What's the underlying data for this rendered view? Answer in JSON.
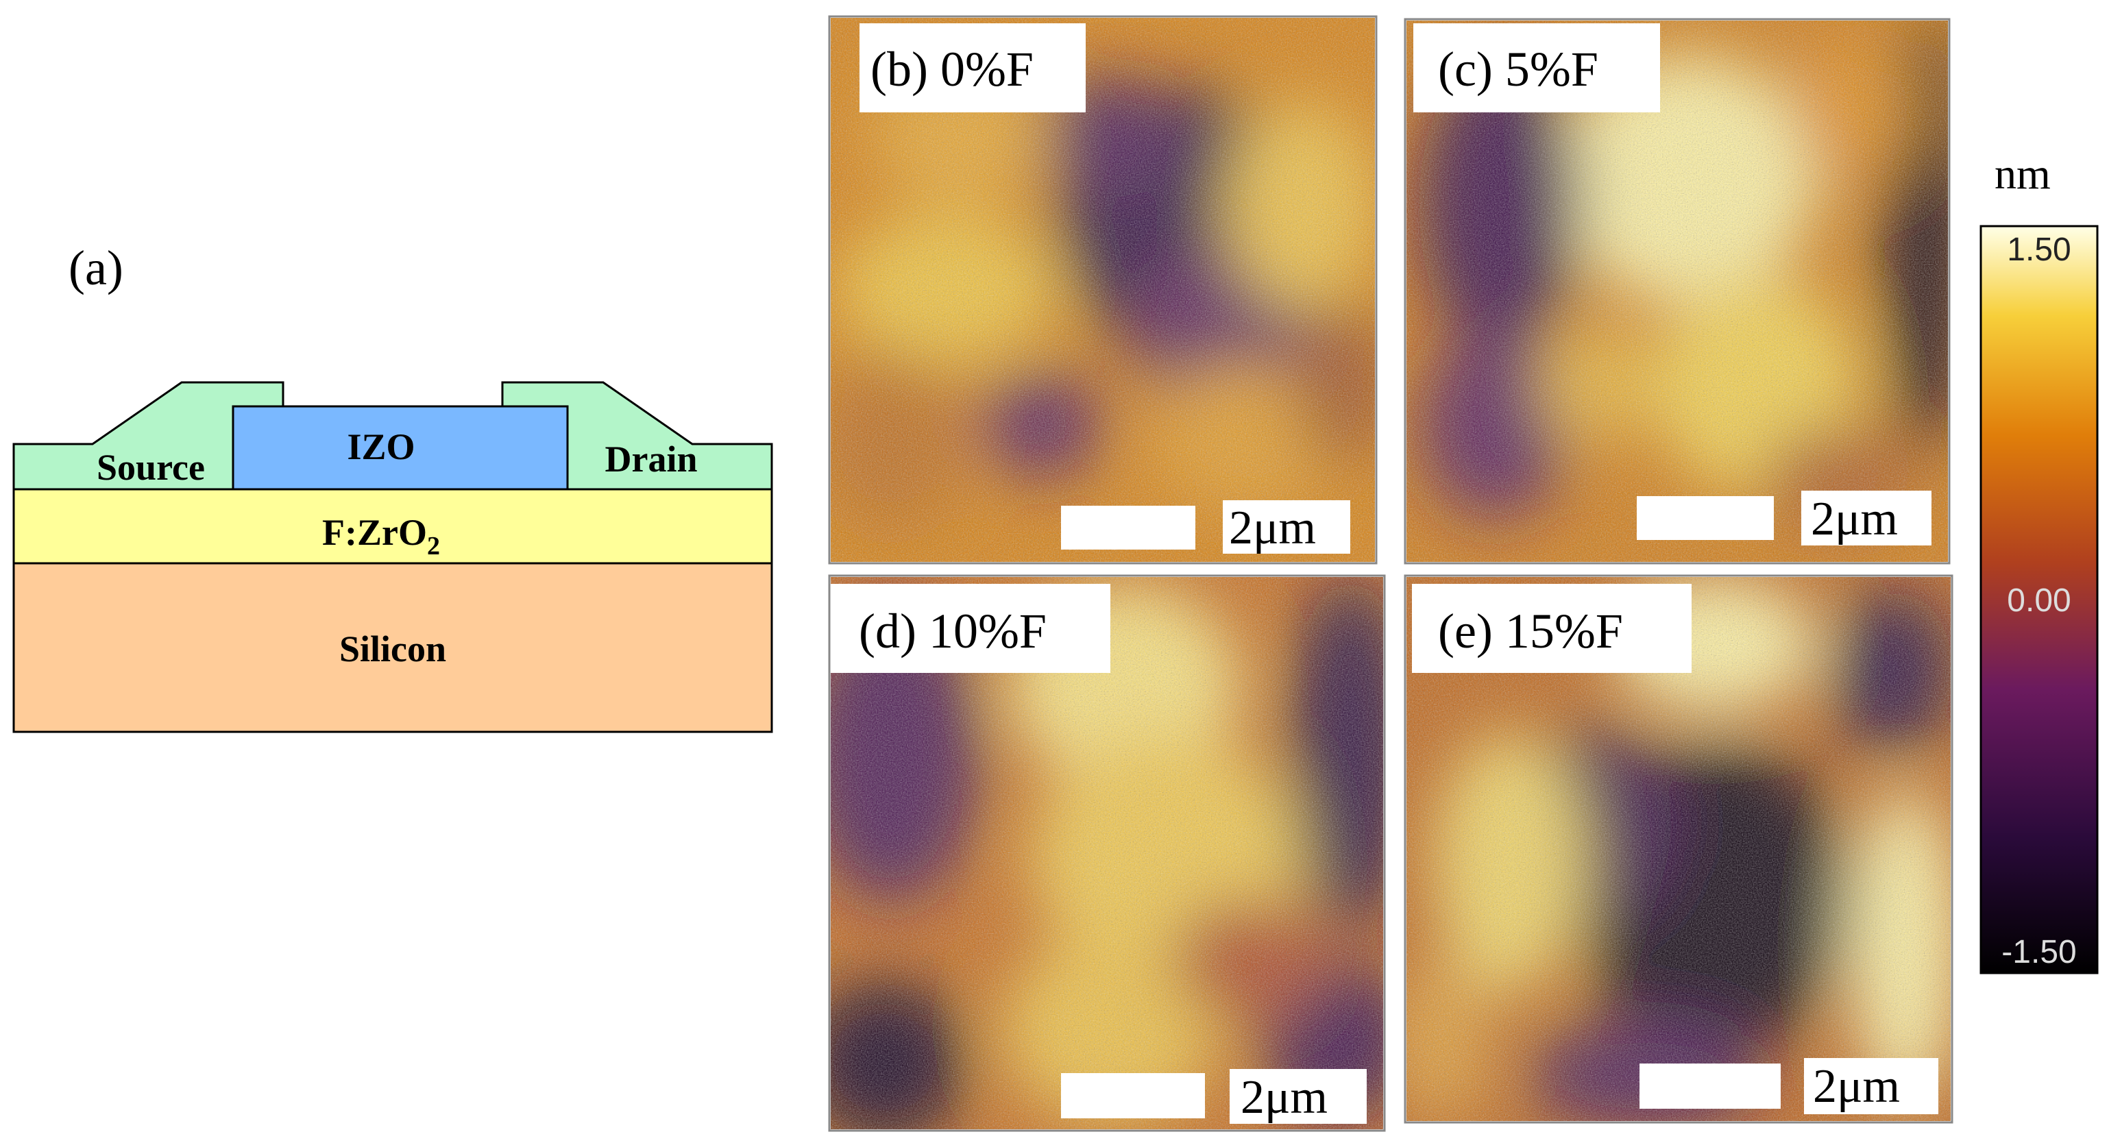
{
  "panel_a": {
    "label": "(a)",
    "layers": {
      "source": "Source",
      "drain": "Drain",
      "channel": "IZO",
      "dielectric_main": "F:ZrO",
      "dielectric_subscript": "2",
      "substrate": "Silicon"
    },
    "colors": {
      "electrode": "#b3f5c9",
      "channel": "#7ab8ff",
      "dielectric": "#ffff99",
      "substrate": "#ffcc99"
    }
  },
  "afm_panels": [
    {
      "label": "(b) 0%F",
      "scale_bar": "2μm"
    },
    {
      "label": "(c) 5%F",
      "scale_bar": "2μm"
    },
    {
      "label": "(d) 10%F",
      "scale_bar": "2μm"
    },
    {
      "label": "(e) 15%F",
      "scale_bar": "2μm"
    }
  ],
  "colorbar": {
    "unit": "nm",
    "max_label": "1.50",
    "mid_label": "0.00",
    "min_label": "-1.50",
    "colormap": "afmhot-like (black → purple → orange → yellow → white)"
  }
}
